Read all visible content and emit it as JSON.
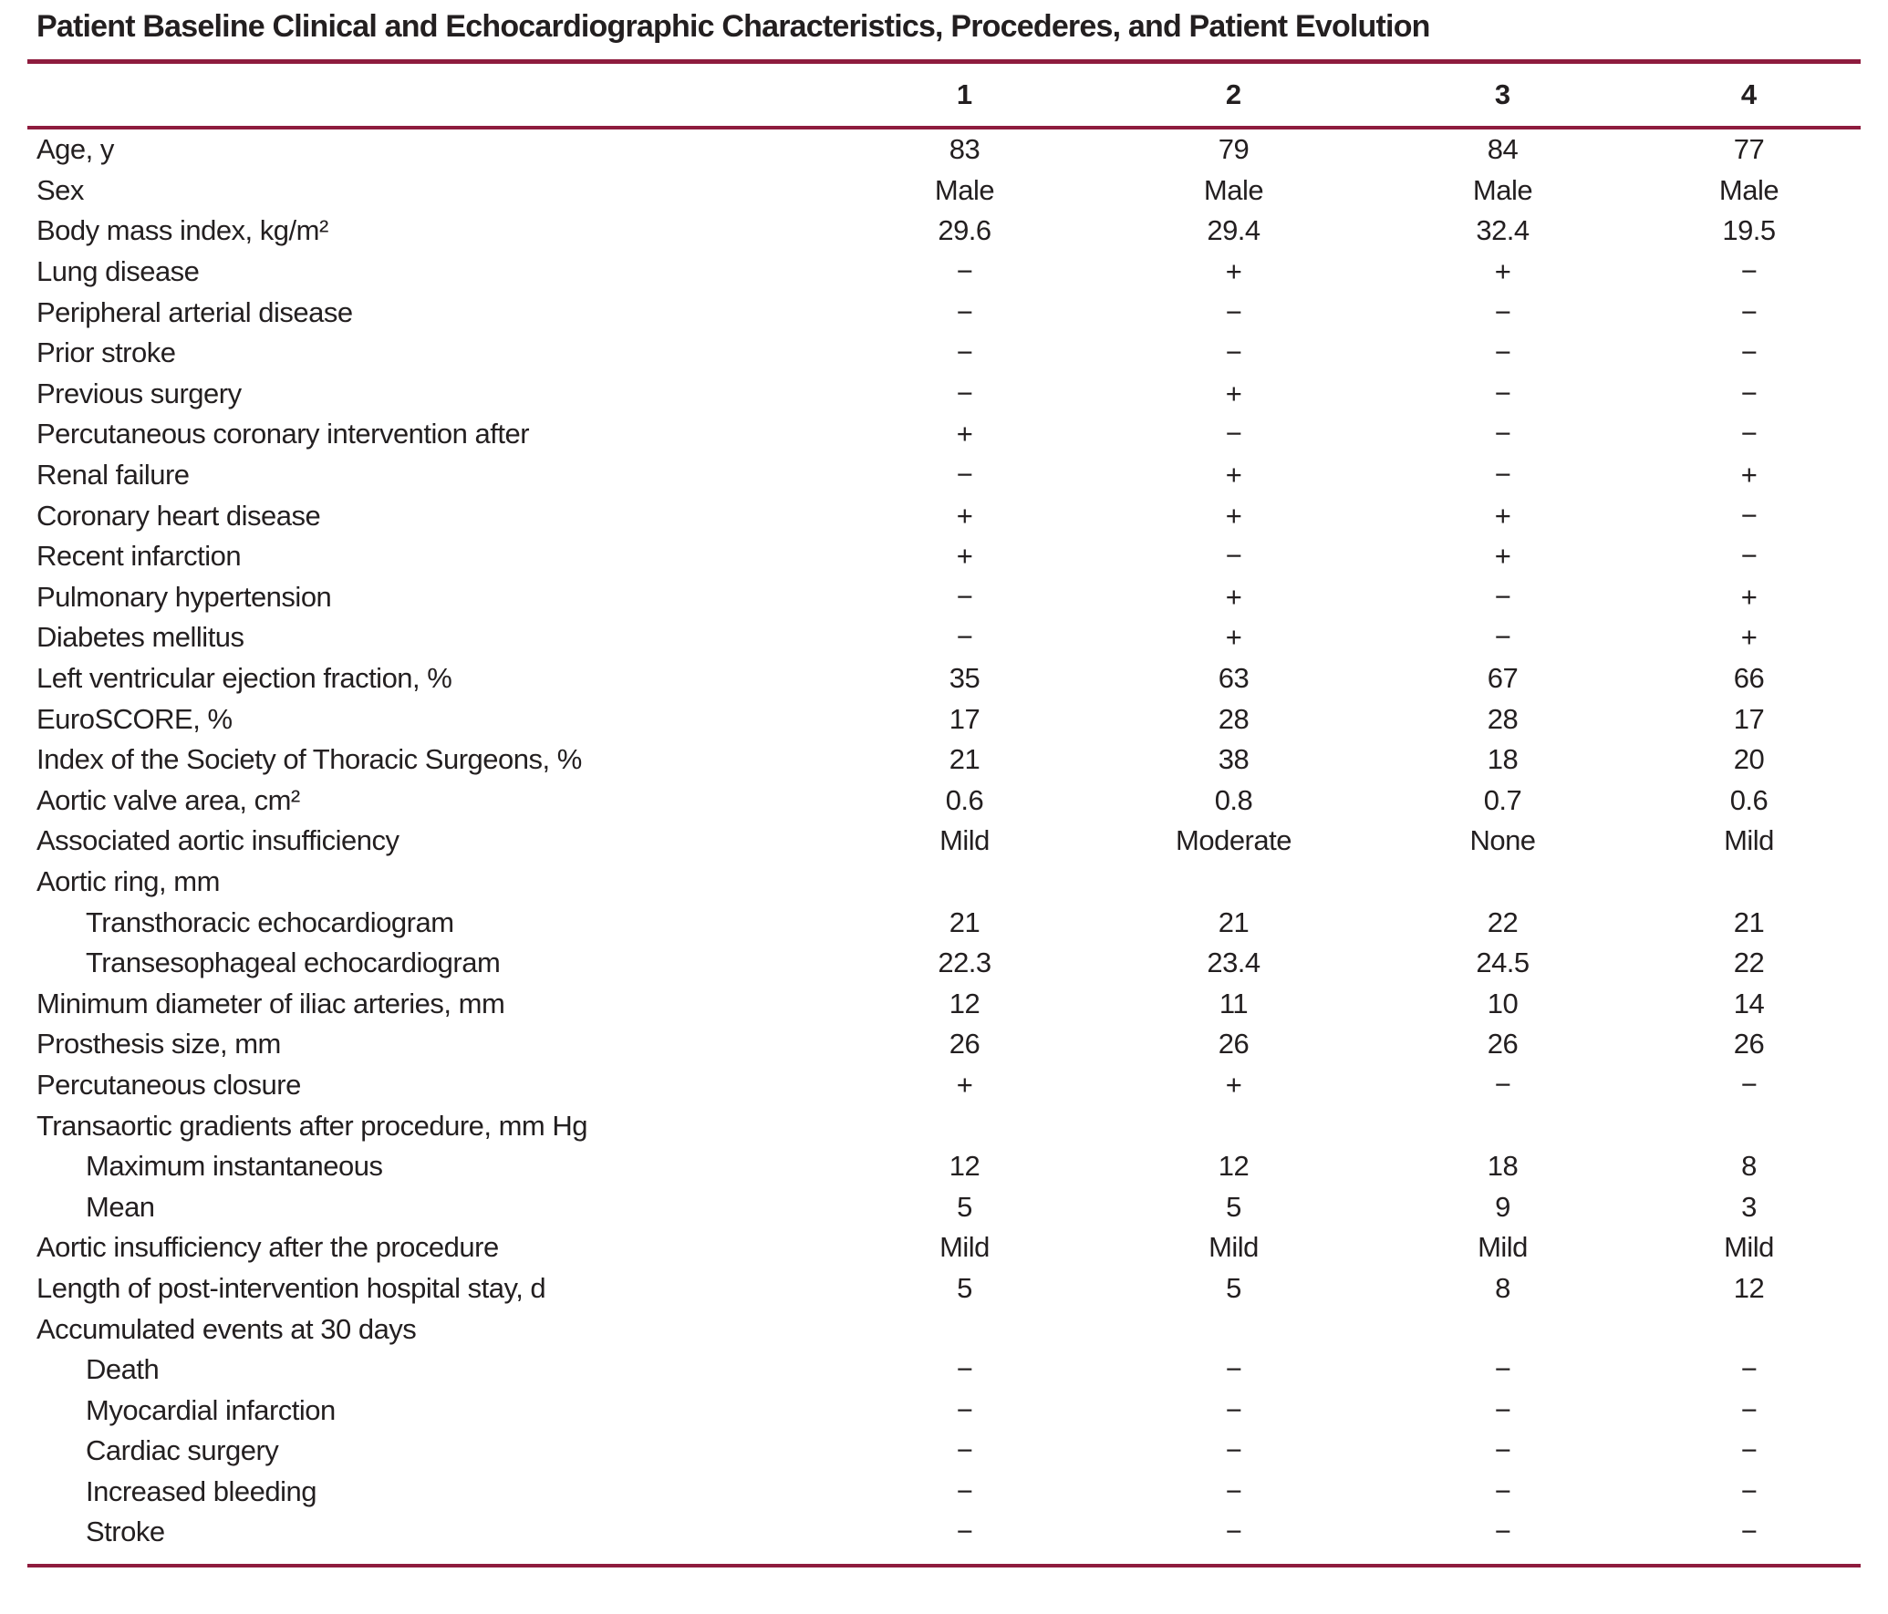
{
  "title": "Patient Baseline Clinical and Echocardiographic Characteristics, Procederes, and Patient Evolution",
  "colors": {
    "rule": "#8e1c3e",
    "text": "#231f20",
    "background": "#ffffff"
  },
  "table": {
    "columns": [
      "1",
      "2",
      "3",
      "4"
    ],
    "rows": [
      {
        "label": "Age, y",
        "indent": 0,
        "values": [
          "83",
          "79",
          "84",
          "77"
        ]
      },
      {
        "label": "Sex",
        "indent": 0,
        "values": [
          "Male",
          "Male",
          "Male",
          "Male"
        ]
      },
      {
        "label": "Body mass index, kg/m²",
        "indent": 0,
        "values": [
          "29.6",
          "29.4",
          "32.4",
          "19.5"
        ]
      },
      {
        "label": "Lung disease",
        "indent": 0,
        "values": [
          "−",
          "+",
          "+",
          "−"
        ]
      },
      {
        "label": "Peripheral arterial disease",
        "indent": 0,
        "values": [
          "−",
          "−",
          "−",
          "−"
        ]
      },
      {
        "label": "Prior stroke",
        "indent": 0,
        "values": [
          "−",
          "−",
          "−",
          "−"
        ]
      },
      {
        "label": "Previous surgery",
        "indent": 0,
        "values": [
          "−",
          "+",
          "−",
          "−"
        ]
      },
      {
        "label": "Percutaneous coronary intervention after",
        "indent": 0,
        "values": [
          "+",
          "−",
          "−",
          "−"
        ]
      },
      {
        "label": "Renal failure",
        "indent": 0,
        "values": [
          "−",
          "+",
          "−",
          "+"
        ]
      },
      {
        "label": "Coronary heart disease",
        "indent": 0,
        "values": [
          "+",
          "+",
          "+",
          "−"
        ]
      },
      {
        "label": "Recent infarction",
        "indent": 0,
        "values": [
          "+",
          "−",
          "+",
          "−"
        ]
      },
      {
        "label": "Pulmonary hypertension",
        "indent": 0,
        "values": [
          "−",
          "+",
          "−",
          "+"
        ]
      },
      {
        "label": "Diabetes mellitus",
        "indent": 0,
        "values": [
          "−",
          "+",
          "−",
          "+"
        ]
      },
      {
        "label": "Left ventricular ejection fraction, %",
        "indent": 0,
        "values": [
          "35",
          "63",
          "67",
          "66"
        ]
      },
      {
        "label": "EuroSCORE, %",
        "indent": 0,
        "values": [
          "17",
          "28",
          "28",
          "17"
        ]
      },
      {
        "label": "Index of the Society of Thoracic Surgeons, %",
        "indent": 0,
        "values": [
          "21",
          "38",
          "18",
          "20"
        ]
      },
      {
        "label": "Aortic valve area, cm²",
        "indent": 0,
        "values": [
          "0.6",
          "0.8",
          "0.7",
          "0.6"
        ]
      },
      {
        "label": "Associated aortic insufficiency",
        "indent": 0,
        "values": [
          "Mild",
          "Moderate",
          "None",
          "Mild"
        ]
      },
      {
        "label": "Aortic ring, mm",
        "indent": 0,
        "values": [
          "",
          "",
          "",
          ""
        ]
      },
      {
        "label": "Transthoracic echocardiogram",
        "indent": 1,
        "values": [
          "21",
          "21",
          "22",
          "21"
        ]
      },
      {
        "label": "Transesophageal echocardiogram",
        "indent": 1,
        "values": [
          "22.3",
          "23.4",
          "24.5",
          "22"
        ]
      },
      {
        "label": "Minimum diameter of iliac arteries, mm",
        "indent": 0,
        "values": [
          "12",
          "11",
          "10",
          "14"
        ]
      },
      {
        "label": "Prosthesis size, mm",
        "indent": 0,
        "values": [
          "26",
          "26",
          "26",
          "26"
        ]
      },
      {
        "label": "Percutaneous closure",
        "indent": 0,
        "values": [
          "+",
          "+",
          "−",
          "−"
        ]
      },
      {
        "label": "Transaortic gradients after procedure, mm Hg",
        "indent": 0,
        "values": [
          "",
          "",
          "",
          ""
        ]
      },
      {
        "label": "Maximum instantaneous",
        "indent": 1,
        "values": [
          "12",
          "12",
          "18",
          "8"
        ]
      },
      {
        "label": "Mean",
        "indent": 1,
        "values": [
          "5",
          "5",
          "9",
          "3"
        ]
      },
      {
        "label": "Aortic insufficiency after the procedure",
        "indent": 0,
        "values": [
          "Mild",
          "Mild",
          "Mild",
          "Mild"
        ]
      },
      {
        "label": "Length of post-intervention hospital stay, d",
        "indent": 0,
        "values": [
          "5",
          "5",
          "8",
          "12"
        ]
      },
      {
        "label": "Accumulated events at 30 days",
        "indent": 0,
        "values": [
          "",
          "",
          "",
          ""
        ]
      },
      {
        "label": "Death",
        "indent": 1,
        "values": [
          "−",
          "−",
          "−",
          "−"
        ]
      },
      {
        "label": "Myocardial infarction",
        "indent": 1,
        "values": [
          "−",
          "−",
          "−",
          "−"
        ]
      },
      {
        "label": "Cardiac surgery",
        "indent": 1,
        "values": [
          "−",
          "−",
          "−",
          "−"
        ]
      },
      {
        "label": "Increased bleeding",
        "indent": 1,
        "values": [
          "−",
          "−",
          "−",
          "−"
        ]
      },
      {
        "label": "Stroke",
        "indent": 1,
        "values": [
          "−",
          "−",
          "−",
          "−"
        ]
      }
    ]
  }
}
